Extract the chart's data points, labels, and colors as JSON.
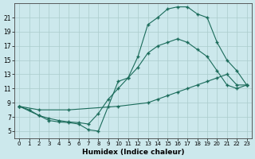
{
  "xlabel": "Humidex (Indice chaleur)",
  "bg_color": "#cce8ec",
  "grid_color": "#aacccc",
  "line_color": "#1a6b5a",
  "xlim": [
    -0.5,
    23.5
  ],
  "ylim": [
    4,
    23
  ],
  "xticks": [
    0,
    1,
    2,
    3,
    4,
    5,
    6,
    7,
    8,
    9,
    10,
    11,
    12,
    13,
    14,
    15,
    16,
    17,
    18,
    19,
    20,
    21,
    22,
    23
  ],
  "yticks": [
    5,
    7,
    9,
    11,
    13,
    15,
    17,
    19,
    21
  ],
  "line1_x": [
    0,
    1,
    2,
    3,
    4,
    5,
    6,
    7,
    8,
    9,
    10,
    11,
    12,
    13,
    14,
    15,
    16,
    17,
    18,
    19,
    20,
    21,
    22,
    23
  ],
  "line1_y": [
    8.5,
    8.0,
    7.2,
    6.5,
    6.3,
    6.2,
    6.0,
    5.2,
    5.0,
    8.5,
    12.0,
    12.5,
    15.5,
    20.0,
    21.0,
    22.2,
    22.5,
    22.5,
    21.5,
    21.0,
    17.5,
    15.0,
    13.5,
    11.5
  ],
  "line2_x": [
    0,
    2,
    3,
    4,
    5,
    6,
    7,
    8,
    9,
    10,
    11,
    12,
    13,
    14,
    15,
    16,
    17,
    18,
    19,
    20,
    21,
    22,
    23
  ],
  "line2_y": [
    8.5,
    7.2,
    6.8,
    6.5,
    6.3,
    6.2,
    6.0,
    7.5,
    9.5,
    11.0,
    12.5,
    14.0,
    16.0,
    17.0,
    17.5,
    18.0,
    17.5,
    16.5,
    15.5,
    13.5,
    11.5,
    11.0,
    11.5
  ],
  "line3_x": [
    0,
    2,
    5,
    10,
    13,
    14,
    15,
    16,
    17,
    18,
    19,
    20,
    21,
    22,
    23
  ],
  "line3_y": [
    8.5,
    8.0,
    8.0,
    8.5,
    9.0,
    9.5,
    10.0,
    10.5,
    11.0,
    11.5,
    12.0,
    12.5,
    13.0,
    11.5,
    11.5
  ]
}
